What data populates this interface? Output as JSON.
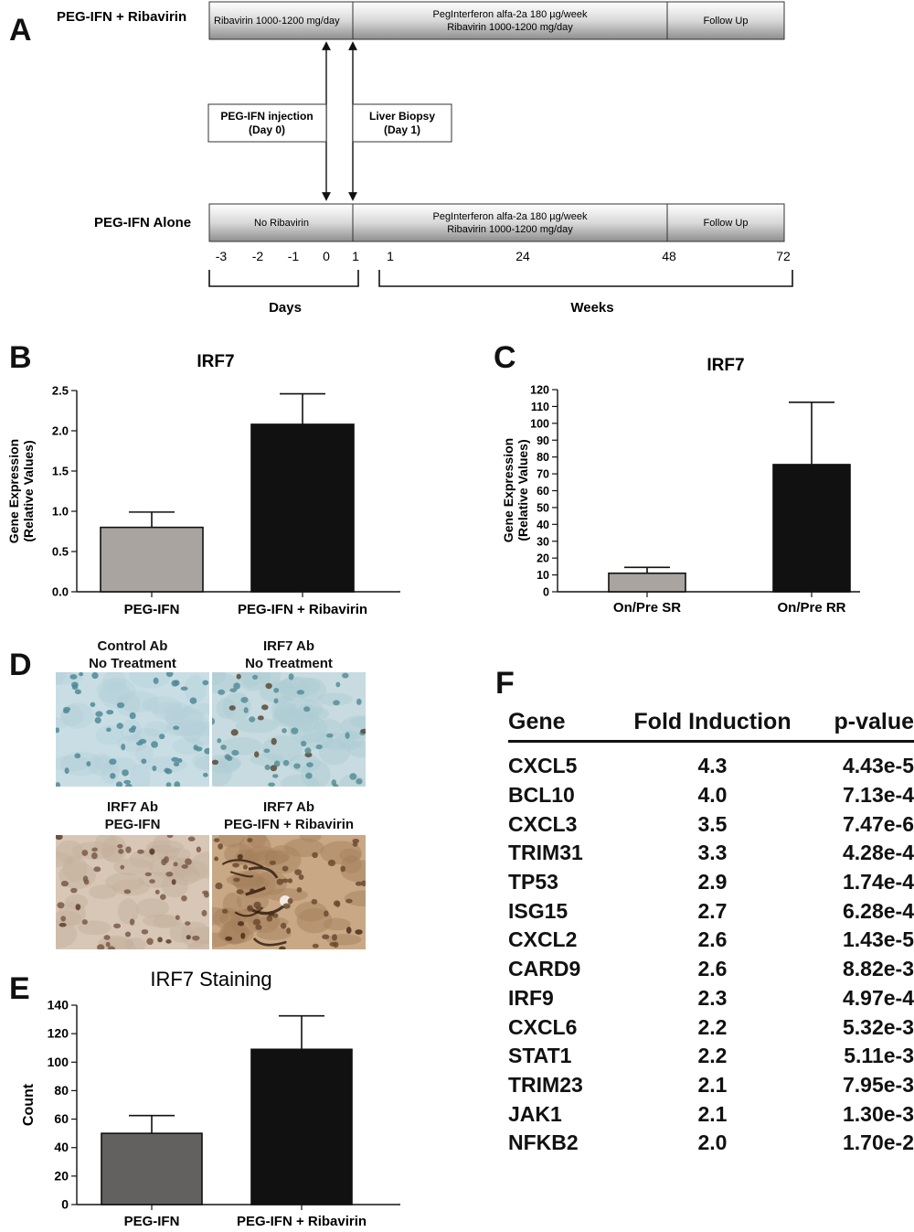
{
  "panel_letters": [
    "A",
    "B",
    "C",
    "D",
    "E",
    "F"
  ],
  "panel_a": {
    "row1_label": "PEG-IFN + Ribavirin",
    "row1_segments": [
      "Ribavirin 1000-1200 mg/day",
      "PegInterferon alfa-2a 180 µg/week",
      "Ribavirin 1000-1200 mg/day",
      "Follow Up"
    ],
    "row2_label": "PEG-IFN Alone",
    "row2_segments": [
      "No Ribavirin",
      "PegInterferon alfa-2a 180 µg/week",
      "Ribavirin 1000-1200 mg/day",
      "Follow Up"
    ],
    "box_left": [
      "PEG-IFN injection",
      "(Day 0)"
    ],
    "box_right": [
      "Liver Biopsy",
      "(Day 1)"
    ],
    "day_ticks": [
      "-3",
      "-2",
      "-1",
      "0",
      "1"
    ],
    "week_ticks": [
      "1",
      "24",
      "48",
      "72"
    ],
    "days_label": "Days",
    "weeks_label": "Weeks"
  },
  "chart_data": [
    {
      "panel": "B",
      "type": "bar",
      "title": "IRF7",
      "ylabel": "Gene Expression (Relative Values)",
      "categories": [
        "PEG-IFN",
        "PEG-IFN + Ribavirin"
      ],
      "values": [
        0.8,
        2.08
      ],
      "errors": [
        0.19,
        0.38
      ],
      "ylim": [
        0,
        2.5
      ],
      "yticks": [
        "0.0",
        "0.5",
        "1.0",
        "1.5",
        "2.0",
        "2.5"
      ],
      "bar_colors": [
        "#a9a4a0",
        "#111111"
      ]
    },
    {
      "panel": "C",
      "type": "bar",
      "title": "IRF7",
      "ylabel": "Gene Expression (Relative Values)",
      "categories": [
        "On/Pre SR",
        "On/Pre RR"
      ],
      "values": [
        11,
        75.5
      ],
      "errors": [
        3.5,
        37
      ],
      "ylim": [
        0,
        120
      ],
      "yticks": [
        "0",
        "10",
        "20",
        "30",
        "40",
        "50",
        "60",
        "70",
        "80",
        "90",
        "100",
        "110",
        "120"
      ],
      "bar_colors": [
        "#a9a4a0",
        "#111111"
      ]
    },
    {
      "panel": "E",
      "type": "bar",
      "title": "IRF7 Staining",
      "ylabel": "Count",
      "categories": [
        "PEG-IFN",
        "PEG-IFN + Ribavirin"
      ],
      "values": [
        50,
        109
      ],
      "errors": [
        12.5,
        23.5
      ],
      "ylim": [
        0,
        140
      ],
      "yticks": [
        "0",
        "20",
        "40",
        "60",
        "80",
        "100",
        "120",
        "140"
      ],
      "bar_colors": [
        "#636060",
        "#111111"
      ]
    }
  ],
  "panel_d": {
    "images": [
      {
        "line1": "Control Ab",
        "line2": "No Treatment"
      },
      {
        "line1": "IRF7 Ab",
        "line2": "No Treatment"
      },
      {
        "line1": "IRF7 Ab",
        "line2": "PEG-IFN"
      },
      {
        "line1": "IRF7 Ab",
        "line2": "PEG-IFN + Ribavirin"
      }
    ]
  },
  "panel_f": {
    "headers": [
      "Gene",
      "Fold Induction",
      "p-value"
    ],
    "rows": [
      [
        "CXCL5",
        "4.3",
        "4.43e-5"
      ],
      [
        "BCL10",
        "4.0",
        "7.13e-4"
      ],
      [
        "CXCL3",
        "3.5",
        "7.47e-6"
      ],
      [
        "TRIM31",
        "3.3",
        "4.28e-4"
      ],
      [
        "TP53",
        "2.9",
        "1.74e-4"
      ],
      [
        "ISG15",
        "2.7",
        "6.28e-4"
      ],
      [
        "CXCL2",
        "2.6",
        "1.43e-5"
      ],
      [
        "CARD9",
        "2.6",
        "8.82e-3"
      ],
      [
        "IRF9",
        "2.3",
        "4.97e-4"
      ],
      [
        "CXCL6",
        "2.2",
        "5.32e-3"
      ],
      [
        "STAT1",
        "2.2",
        "5.11e-3"
      ],
      [
        "TRIM23",
        "2.1",
        "7.95e-3"
      ],
      [
        "JAK1",
        "2.1",
        "1.30e-3"
      ],
      [
        "NFKB2",
        "2.0",
        "1.70e-2"
      ]
    ]
  }
}
